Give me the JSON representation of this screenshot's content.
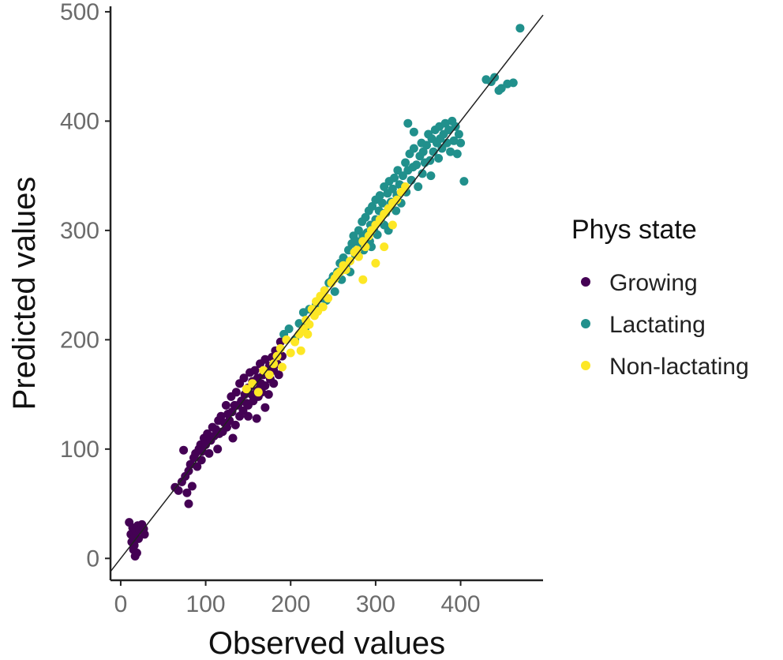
{
  "chart_data": {
    "type": "scatter",
    "title": "",
    "xlabel": "Observed values",
    "ylabel": "Predicted values",
    "xlim": [
      -12,
      497
    ],
    "ylim": [
      -20,
      505
    ],
    "xticks": [
      0,
      100,
      200,
      300,
      400
    ],
    "yticks": [
      0,
      100,
      200,
      300,
      400,
      500
    ],
    "grid": false,
    "reference_line": {
      "type": "identity",
      "slope": 1,
      "intercept": 0,
      "color": "#222222"
    },
    "legend": {
      "title": "Phys state",
      "position": "right"
    },
    "series": [
      {
        "name": "Growing",
        "color": "#440154",
        "points": [
          [
            10,
            33
          ],
          [
            12,
            22
          ],
          [
            14,
            28
          ],
          [
            15,
            18
          ],
          [
            16,
            12
          ],
          [
            18,
            25
          ],
          [
            20,
            30
          ],
          [
            22,
            26
          ],
          [
            25,
            31
          ],
          [
            27,
            27
          ],
          [
            28,
            22
          ],
          [
            15,
            8
          ],
          [
            17,
            2
          ],
          [
            19,
            5
          ],
          [
            13,
            15
          ],
          [
            21,
            18
          ],
          [
            64,
            65
          ],
          [
            68,
            62
          ],
          [
            72,
            70
          ],
          [
            74,
            99
          ],
          [
            76,
            75
          ],
          [
            78,
            60
          ],
          [
            80,
            50
          ],
          [
            80,
            80
          ],
          [
            82,
            86
          ],
          [
            84,
            66
          ],
          [
            86,
            92
          ],
          [
            88,
            96
          ],
          [
            90,
            84
          ],
          [
            92,
            100
          ],
          [
            94,
            104
          ],
          [
            95,
            90
          ],
          [
            96,
            98
          ],
          [
            98,
            110
          ],
          [
            100,
            104
          ],
          [
            102,
            114
          ],
          [
            104,
            96
          ],
          [
            106,
            108
          ],
          [
            108,
            120
          ],
          [
            110,
            112
          ],
          [
            112,
            118
          ],
          [
            114,
            100
          ],
          [
            115,
            126
          ],
          [
            116,
            114
          ],
          [
            118,
            130
          ],
          [
            120,
            116
          ],
          [
            122,
            124
          ],
          [
            124,
            140
          ],
          [
            125,
            120
          ],
          [
            126,
            132
          ],
          [
            128,
            126
          ],
          [
            130,
            148
          ],
          [
            131,
            134
          ],
          [
            132,
            110
          ],
          [
            134,
            140
          ],
          [
            135,
            122
          ],
          [
            136,
            152
          ],
          [
            138,
            140
          ],
          [
            140,
            160
          ],
          [
            140,
            130
          ],
          [
            142,
            144
          ],
          [
            144,
            135
          ],
          [
            145,
            165
          ],
          [
            146,
            150
          ],
          [
            148,
            142
          ],
          [
            150,
            156
          ],
          [
            150,
            140
          ],
          [
            152,
            170
          ],
          [
            154,
            150
          ],
          [
            155,
            162
          ],
          [
            156,
            144
          ],
          [
            158,
            172
          ],
          [
            160,
            156
          ],
          [
            161,
            165
          ],
          [
            162,
            148
          ],
          [
            164,
            178
          ],
          [
            165,
            160
          ],
          [
            166,
            152
          ],
          [
            168,
            168
          ],
          [
            170,
            158
          ],
          [
            170,
            182
          ],
          [
            172,
            170
          ],
          [
            174,
            150
          ],
          [
            175,
            176
          ],
          [
            176,
            164
          ],
          [
            178,
            184
          ],
          [
            180,
            172
          ],
          [
            180,
            160
          ],
          [
            182,
            190
          ],
          [
            184,
            178
          ],
          [
            186,
            168
          ],
          [
            188,
            198
          ],
          [
            190,
            185
          ],
          [
            150,
            130
          ],
          [
            160,
            128
          ],
          [
            170,
            138
          ]
        ]
      },
      {
        "name": "Lactating",
        "color": "#21908C",
        "points": [
          [
            192,
            205
          ],
          [
            198,
            210
          ],
          [
            205,
            200
          ],
          [
            210,
            215
          ],
          [
            215,
            225
          ],
          [
            218,
            212
          ],
          [
            222,
            228
          ],
          [
            230,
            232
          ],
          [
            235,
            238
          ],
          [
            240,
            245
          ],
          [
            245,
            252
          ],
          [
            250,
            258
          ],
          [
            252,
            244
          ],
          [
            255,
            262
          ],
          [
            258,
            270
          ],
          [
            260,
            255
          ],
          [
            262,
            275
          ],
          [
            265,
            268
          ],
          [
            268,
            282
          ],
          [
            270,
            262
          ],
          [
            272,
            288
          ],
          [
            274,
            295
          ],
          [
            276,
            278
          ],
          [
            278,
            290
          ],
          [
            280,
            300
          ],
          [
            282,
            284
          ],
          [
            284,
            308
          ],
          [
            285,
            295
          ],
          [
            286,
            282
          ],
          [
            288,
            312
          ],
          [
            290,
            298
          ],
          [
            292,
            318
          ],
          [
            293,
            290
          ],
          [
            294,
            305
          ],
          [
            296,
            322
          ],
          [
            298,
            300
          ],
          [
            300,
            328
          ],
          [
            300,
            310
          ],
          [
            302,
            296
          ],
          [
            304,
            318
          ],
          [
            305,
            332
          ],
          [
            306,
            308
          ],
          [
            308,
            325
          ],
          [
            310,
            340
          ],
          [
            312,
            316
          ],
          [
            314,
            334
          ],
          [
            315,
            300
          ],
          [
            316,
            345
          ],
          [
            318,
            326
          ],
          [
            320,
            338
          ],
          [
            322,
            348
          ],
          [
            324,
            318
          ],
          [
            325,
            332
          ],
          [
            326,
            355
          ],
          [
            328,
            342
          ],
          [
            330,
            325
          ],
          [
            332,
            350
          ],
          [
            334,
            340
          ],
          [
            335,
            362
          ],
          [
            336,
            335
          ],
          [
            338,
            355
          ],
          [
            340,
            370
          ],
          [
            342,
            346
          ],
          [
            344,
            358
          ],
          [
            345,
            375
          ],
          [
            348,
            360
          ],
          [
            350,
            340
          ],
          [
            352,
            368
          ],
          [
            354,
            380
          ],
          [
            355,
            352
          ],
          [
            356,
            372
          ],
          [
            358,
            362
          ],
          [
            360,
            378
          ],
          [
            362,
            388
          ],
          [
            364,
            364
          ],
          [
            365,
            350
          ],
          [
            366,
            384
          ],
          [
            368,
            372
          ],
          [
            370,
            392
          ],
          [
            372,
            380
          ],
          [
            374,
            366
          ],
          [
            375,
            395
          ],
          [
            376,
            384
          ],
          [
            378,
            375
          ],
          [
            380,
            388
          ],
          [
            382,
            398
          ],
          [
            384,
            380
          ],
          [
            386,
            392
          ],
          [
            388,
            372
          ],
          [
            390,
            400
          ],
          [
            392,
            382
          ],
          [
            394,
            395
          ],
          [
            396,
            370
          ],
          [
            398,
            388
          ],
          [
            400,
            380
          ],
          [
            404,
            345
          ],
          [
            338,
            398
          ],
          [
            345,
            390
          ],
          [
            242,
            236
          ],
          [
            248,
            254
          ],
          [
            288,
            292
          ],
          [
            295,
            285
          ],
          [
            310,
            305
          ],
          [
            440,
            440
          ],
          [
            445,
            428
          ],
          [
            448,
            430
          ],
          [
            455,
            434
          ],
          [
            462,
            435
          ],
          [
            470,
            485
          ],
          [
            430,
            438
          ],
          [
            436,
            436
          ]
        ]
      },
      {
        "name": "Non-lactating",
        "color": "#FDE725",
        "points": [
          [
            148,
            155
          ],
          [
            155,
            160
          ],
          [
            162,
            152
          ],
          [
            168,
            172
          ],
          [
            175,
            168
          ],
          [
            180,
            178
          ],
          [
            184,
            185
          ],
          [
            188,
            192
          ],
          [
            190,
            175
          ],
          [
            195,
            200
          ],
          [
            200,
            188
          ],
          [
            205,
            198
          ],
          [
            210,
            205
          ],
          [
            212,
            190
          ],
          [
            215,
            210
          ],
          [
            218,
            218
          ],
          [
            220,
            205
          ],
          [
            222,
            214
          ],
          [
            225,
            228
          ],
          [
            228,
            222
          ],
          [
            230,
            235
          ],
          [
            232,
            226
          ],
          [
            235,
            240
          ],
          [
            238,
            230
          ],
          [
            240,
            245
          ],
          [
            244,
            238
          ],
          [
            248,
            252
          ],
          [
            252,
            256
          ],
          [
            255,
            260
          ],
          [
            258,
            262
          ],
          [
            262,
            268
          ],
          [
            265,
            264
          ],
          [
            270,
            272
          ],
          [
            275,
            280
          ],
          [
            278,
            282
          ],
          [
            280,
            276
          ],
          [
            285,
            290
          ],
          [
            288,
            285
          ],
          [
            292,
            295
          ],
          [
            295,
            300
          ],
          [
            300,
            305
          ],
          [
            305,
            310
          ],
          [
            310,
            315
          ],
          [
            315,
            320
          ],
          [
            320,
            325
          ],
          [
            325,
            328
          ],
          [
            330,
            335
          ],
          [
            335,
            340
          ],
          [
            300,
            270
          ],
          [
            310,
            285
          ],
          [
            320,
            305
          ],
          [
            285,
            255
          ]
        ]
      }
    ]
  }
}
